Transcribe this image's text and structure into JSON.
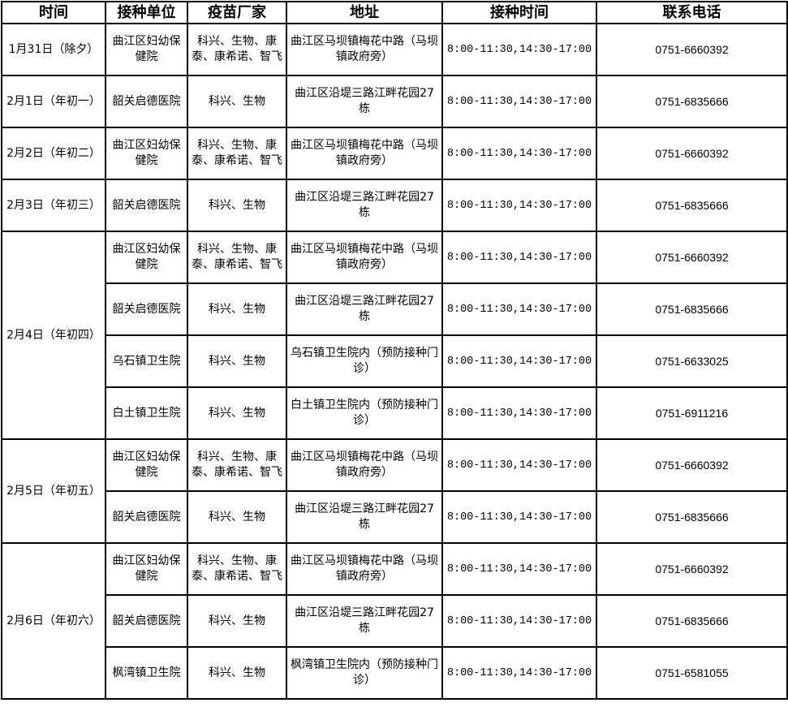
{
  "headers": [
    "时间",
    "接种单位",
    "疫苗厂家",
    "地址",
    "接种时间",
    "联系电话"
  ],
  "groups": [
    {
      "date": "1月31日（除夕）",
      "entries": [
        {
          "unit": "曲江区妇幼保健院",
          "vendor": "科兴、生物、康泰、康希诺、智飞",
          "address": "曲江区马坝镇梅花中路（马坝镇政府旁）",
          "hours": "8:00-11:30,14:30-17:00",
          "phone": "0751-6660392"
        }
      ]
    },
    {
      "date": "2月1日（年初一）",
      "entries": [
        {
          "unit": "韶关启德医院",
          "vendor": "科兴、生物",
          "address": "曲江区沿堤三路江畔花园27栋",
          "hours": "8:00-11:30,14:30-17:00",
          "phone": "0751-6835666"
        }
      ]
    },
    {
      "date": "2月2日（年初二）",
      "entries": [
        {
          "unit": "曲江区妇幼保健院",
          "vendor": "科兴、生物、康泰、康希诺、智飞",
          "address": "曲江区马坝镇梅花中路（马坝镇政府旁）",
          "hours": "8:00-11:30,14:30-17:00",
          "phone": "0751-6660392"
        }
      ]
    },
    {
      "date": "2月3日（年初三）",
      "entries": [
        {
          "unit": "韶关启德医院",
          "vendor": "科兴、生物",
          "address": "曲江区沿堤三路江畔花园27栋",
          "hours": "8:00-11:30,14:30-17:00",
          "phone": "0751-6835666"
        }
      ]
    },
    {
      "date": "2月4日（年初四）",
      "entries": [
        {
          "unit": "曲江区妇幼保健院",
          "vendor": "科兴、生物、康泰、康希诺、智飞",
          "address": "曲江区马坝镇梅花中路（马坝镇政府旁）",
          "hours": "8:00-11:30,14:30-17:00",
          "phone": "0751-6660392"
        },
        {
          "unit": "韶关启德医院",
          "vendor": "科兴、生物",
          "address": "曲江区沿堤三路江畔花园27栋",
          "hours": "8:00-11:30,14:30-17:00",
          "phone": "0751-6835666"
        },
        {
          "unit": "乌石镇卫生院",
          "vendor": "科兴、生物",
          "address": "乌石镇卫生院内（预防接种门诊）",
          "hours": "8:00-11:30,14:30-17:00",
          "phone": "0751-6633025"
        },
        {
          "unit": "白土镇卫生院",
          "vendor": "科兴、生物",
          "address": "白土镇卫生院内（预防接种门诊）",
          "hours": "8:00-11:30,14:30-17:00",
          "phone": "0751-6911216"
        }
      ]
    },
    {
      "date": "2月5日（年初五）",
      "entries": [
        {
          "unit": "曲江区妇幼保健院",
          "vendor": "科兴、生物、康泰、康希诺、智飞",
          "address": "曲江区马坝镇梅花中路（马坝镇政府旁）",
          "hours": "8:00-11:30,14:30-17:00",
          "phone": "0751-6660392"
        },
        {
          "unit": "韶关启德医院",
          "vendor": "科兴、生物",
          "address": "曲江区沿堤三路江畔花园27栋",
          "hours": "8:00-11:30,14:30-17:00",
          "phone": "0751-6835666"
        }
      ]
    },
    {
      "date": "2月6日（年初六）",
      "entries": [
        {
          "unit": "曲江区妇幼保健院",
          "vendor": "科兴、生物、康泰、康希诺、智飞",
          "address": "曲江区马坝镇梅花中路（马坝镇政府旁）",
          "hours": "8:00-11:30,14:30-17:00",
          "phone": "0751-6660392"
        },
        {
          "unit": "韶关启德医院",
          "vendor": "科兴、生物",
          "address": "曲江区沿堤三路江畔花园27栋",
          "hours": "8:00-11:30,14:30-17:00",
          "phone": "0751-6835666"
        },
        {
          "unit": "枫湾镇卫生院",
          "vendor": "科兴、生物",
          "address": "枫湾镇卫生院内（预防接种门诊）",
          "hours": "8:00-11:30,14:30-17:00",
          "phone": "0751-6581055"
        }
      ]
    }
  ]
}
